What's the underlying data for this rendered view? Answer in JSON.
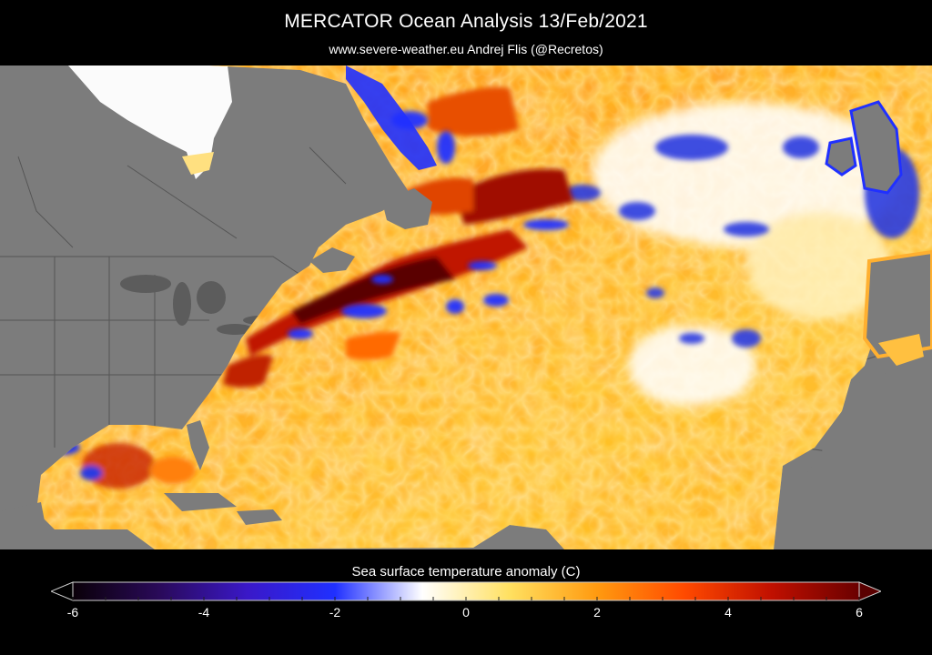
{
  "header": {
    "title": "MERCATOR Ocean Analysis  13/Feb/2021",
    "subtitle": "www.severe-weather.eu   Andrej Flis (@Recretos)"
  },
  "legend": {
    "label": "Sea surface temperature anomaly (C)",
    "ticks": [
      "-6",
      "-4",
      "-2",
      "0",
      "2",
      "4",
      "6"
    ],
    "range": [
      -6,
      6
    ],
    "colors": [
      "#0a0008",
      "#2a0a5a",
      "#3a18c8",
      "#2030ff",
      "#ffffff",
      "#ffe060",
      "#ff9a10",
      "#ff4a00",
      "#c01000",
      "#6a0000"
    ]
  },
  "map": {
    "land_color": "#7c7c7c",
    "ice_color": "#ffffff"
  }
}
